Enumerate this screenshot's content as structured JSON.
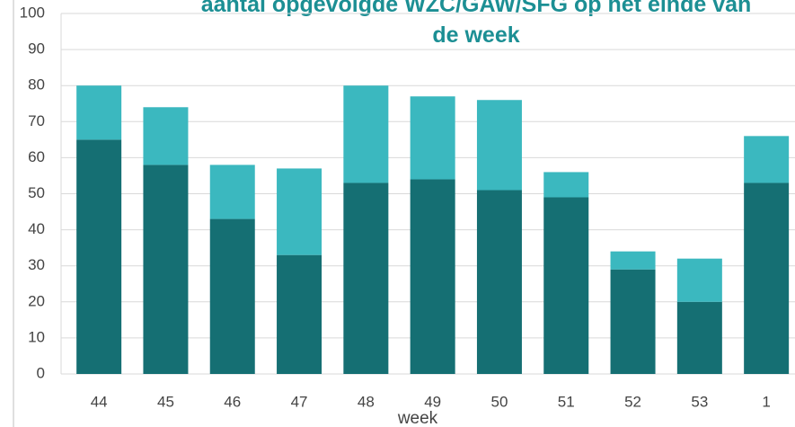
{
  "chart_data": {
    "type": "stacked_bar",
    "title": "aantal opgevolgde WZC/GAW/SFG op het einde van de week",
    "xlabel": "week",
    "categories": [
      "44",
      "45",
      "46",
      "47",
      "48",
      "49",
      "50",
      "51",
      "52",
      "53",
      "1"
    ],
    "series": [
      {
        "color": "#156f73",
        "values": [
          65,
          58,
          43,
          33,
          53,
          54,
          51,
          49,
          29,
          20,
          53
        ]
      },
      {
        "color": "#3bb8bf",
        "values": [
          15,
          16,
          15,
          24,
          27,
          23,
          25,
          7,
          5,
          12,
          13
        ]
      }
    ],
    "ylim": [
      0,
      100
    ],
    "yticks": [
      0,
      10,
      20,
      30,
      40,
      50,
      60,
      70,
      80,
      90,
      100
    ],
    "grid": true
  }
}
